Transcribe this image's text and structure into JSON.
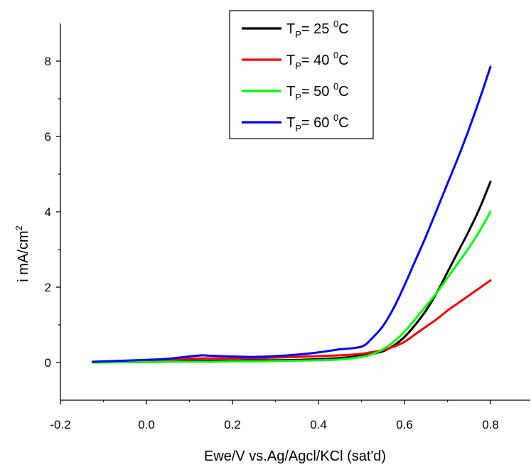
{
  "chart_data": {
    "type": "line",
    "xlabel": "Ewe/V vs.Ag/Agcl/KCl (sat'd)",
    "ylabel": {
      "text": "i mA/cm",
      "sup": "2"
    },
    "xlim": [
      -0.2,
      0.89
    ],
    "ylim": [
      -1,
      9
    ],
    "xticks": [
      "-0.2",
      "0.0",
      "0.2",
      "0.4",
      "0.6",
      "0.8"
    ],
    "yticks": [
      "0",
      "2",
      "4",
      "6",
      "8"
    ],
    "grid": false,
    "legend_position": "top-center",
    "x": [
      -0.125,
      -0.1,
      -0.05,
      0.0,
      0.05,
      0.1,
      0.13,
      0.15,
      0.2,
      0.25,
      0.3,
      0.35,
      0.4,
      0.45,
      0.5,
      0.525,
      0.55,
      0.575,
      0.6,
      0.625,
      0.65,
      0.675,
      0.7,
      0.725,
      0.75,
      0.775,
      0.8
    ],
    "series": [
      {
        "name": {
          "base": "T",
          "sub": "P",
          "text": "= 25 ",
          "sup": "0",
          "unit": "C"
        },
        "color": "#000000",
        "values": [
          0.0,
          0.01,
          0.02,
          0.03,
          0.04,
          0.05,
          0.05,
          0.05,
          0.05,
          0.06,
          0.06,
          0.07,
          0.09,
          0.12,
          0.18,
          0.23,
          0.3,
          0.45,
          0.68,
          1.0,
          1.38,
          1.85,
          2.4,
          2.95,
          3.5,
          4.1,
          4.8
        ]
      },
      {
        "name": {
          "base": "T",
          "sub": "P",
          "text": "= 40 ",
          "sup": "0",
          "unit": "C"
        },
        "color": "#ff0000",
        "values": [
          0.0,
          0.01,
          0.03,
          0.05,
          0.07,
          0.1,
          0.11,
          0.11,
          0.11,
          0.12,
          0.13,
          0.15,
          0.17,
          0.19,
          0.23,
          0.28,
          0.33,
          0.42,
          0.55,
          0.75,
          0.95,
          1.15,
          1.38,
          1.58,
          1.78,
          1.98,
          2.18
        ]
      },
      {
        "name": {
          "base": "T",
          "sub": "P",
          "text": "= 50 ",
          "sup": "0",
          "unit": "C"
        },
        "color": "#00ff00",
        "values": [
          0.0,
          0.0,
          0.01,
          0.01,
          0.02,
          0.02,
          0.02,
          0.02,
          0.03,
          0.03,
          0.04,
          0.05,
          0.06,
          0.08,
          0.15,
          0.22,
          0.35,
          0.55,
          0.82,
          1.15,
          1.5,
          1.85,
          2.25,
          2.65,
          3.05,
          3.5,
          4.0
        ]
      },
      {
        "name": {
          "base": "T",
          "sub": "P",
          "text": "= 60 ",
          "sup": "0",
          "unit": "C"
        },
        "color": "#0000ff",
        "values": [
          0.02,
          0.03,
          0.05,
          0.07,
          0.1,
          0.16,
          0.19,
          0.18,
          0.16,
          0.15,
          0.17,
          0.21,
          0.27,
          0.35,
          0.42,
          0.65,
          0.97,
          1.45,
          2.05,
          2.7,
          3.35,
          4.05,
          4.75,
          5.45,
          6.2,
          7.0,
          7.85
        ]
      }
    ]
  }
}
